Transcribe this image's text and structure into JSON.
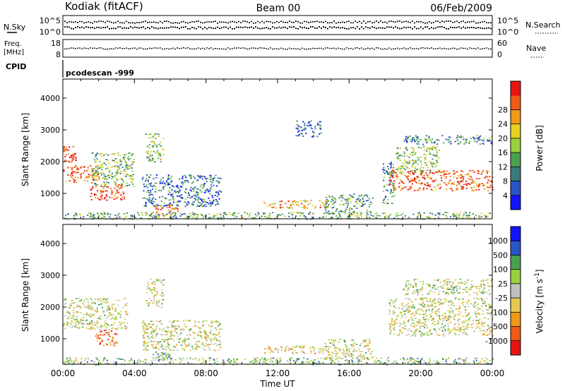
{
  "header": {
    "station": "Kodiak (fitACF)",
    "beam": "Beam 00",
    "date": "06/Feb/2009"
  },
  "status": {
    "nsky_label": "N.Sky",
    "nsky_ticks": [
      "10^5",
      "10^0"
    ],
    "nsearch_label": "N.Search",
    "nsearch_ticks": [
      "10^5",
      "10^0"
    ],
    "freq_label_1": "Freq.",
    "freq_label_2": "[MHz]",
    "freq_ticks": [
      "18",
      "8"
    ],
    "nave_label": "Nave",
    "nave_ticks": [
      "60",
      "0"
    ],
    "cpid_label": "CPID",
    "cpid_value": "pcodescan -999"
  },
  "chart_data": [
    {
      "type": "heatmap",
      "name": "power",
      "ylabel": "Slant Range [km]",
      "yticks": [
        "1000",
        "2000",
        "3000",
        "4000"
      ],
      "ylim": [
        200,
        4600
      ],
      "xlim_hours": [
        0,
        24
      ],
      "colorbar": {
        "label": "Power [dB]",
        "ticks": [
          "4",
          "8",
          "12",
          "16",
          "20",
          "24",
          "28"
        ],
        "colors": [
          "#1414ff",
          "#2a55c8",
          "#3a7a7a",
          "#4aa050",
          "#9ad03c",
          "#e8d020",
          "#f09a1a",
          "#f05a14",
          "#e81414"
        ]
      },
      "regions": [
        {
          "t0": 0.0,
          "t1": 2.0,
          "r0": 1350,
          "r1": 1900,
          "level": 0.8
        },
        {
          "t0": 0.0,
          "t1": 0.7,
          "r0": 1950,
          "r1": 2500,
          "level": 0.9
        },
        {
          "t0": 1.5,
          "t1": 3.4,
          "r0": 800,
          "r1": 1300,
          "level": 0.9
        },
        {
          "t0": 1.6,
          "t1": 4.0,
          "r0": 1200,
          "r1": 2300,
          "level": 0.45
        },
        {
          "t0": 4.6,
          "t1": 5.6,
          "r0": 2000,
          "r1": 2900,
          "level": 0.45
        },
        {
          "t0": 5.0,
          "t1": 6.4,
          "r0": 350,
          "r1": 650,
          "level": 0.8
        },
        {
          "t0": 4.4,
          "t1": 8.8,
          "r0": 600,
          "r1": 1600,
          "level": 0.25
        },
        {
          "t0": 11.2,
          "t1": 14.8,
          "r0": 550,
          "r1": 800,
          "level": 0.7
        },
        {
          "t0": 14.6,
          "t1": 17.3,
          "r0": 350,
          "r1": 1000,
          "level": 0.35
        },
        {
          "t0": 17.8,
          "t1": 18.5,
          "r0": 700,
          "r1": 2000,
          "level": 0.3
        },
        {
          "t0": 18.2,
          "t1": 24.0,
          "r0": 1100,
          "r1": 1750,
          "level": 0.85
        },
        {
          "t0": 18.6,
          "t1": 21.0,
          "r0": 1650,
          "r1": 2500,
          "level": 0.45
        },
        {
          "t0": 19.0,
          "t1": 24.0,
          "r0": 2550,
          "r1": 2850,
          "level": 0.3
        },
        {
          "t0": 13.0,
          "t1": 14.4,
          "r0": 2800,
          "r1": 3300,
          "level": 0.2
        },
        {
          "t0": 0.0,
          "t1": 24.0,
          "r0": 200,
          "r1": 420,
          "level": 0.4
        }
      ]
    },
    {
      "type": "heatmap",
      "name": "velocity",
      "ylabel": "Slant Range [km]",
      "yticks": [
        "1000",
        "2000",
        "3000",
        "4000"
      ],
      "ylim": [
        200,
        4600
      ],
      "xlim_hours": [
        0,
        24
      ],
      "xlabel": "Time UT",
      "xticks": [
        "00:00",
        "04:00",
        "08:00",
        "12:00",
        "16:00",
        "20:00",
        "00:00"
      ],
      "colorbar": {
        "label": "Velocity [m s",
        "label_sup": "-1",
        "label_end": "]",
        "ticks": [
          "-1000",
          "-500",
          "-100",
          "-25",
          "25",
          "100",
          "500",
          "1000"
        ],
        "colors": [
          "#e81414",
          "#f05a14",
          "#f09a1a",
          "#e8c850",
          "#c0c0c0",
          "#9ad03c",
          "#4aa050",
          "#2a55c8",
          "#1414ff"
        ]
      },
      "regions": [
        {
          "t0": 0.0,
          "t1": 3.6,
          "r0": 1300,
          "r1": 2300,
          "level": 0.5
        },
        {
          "t0": 1.8,
          "t1": 3.0,
          "r0": 800,
          "r1": 1300,
          "level": 0.15
        },
        {
          "t0": 4.6,
          "t1": 5.6,
          "r0": 2000,
          "r1": 2900,
          "level": 0.5
        },
        {
          "t0": 5.0,
          "t1": 6.0,
          "r0": 350,
          "r1": 600,
          "level": 0.6
        },
        {
          "t0": 4.4,
          "t1": 8.8,
          "r0": 650,
          "r1": 1600,
          "level": 0.5
        },
        {
          "t0": 11.2,
          "t1": 14.8,
          "r0": 550,
          "r1": 800,
          "level": 0.4
        },
        {
          "t0": 14.6,
          "t1": 17.3,
          "r0": 350,
          "r1": 1000,
          "level": 0.5
        },
        {
          "t0": 18.2,
          "t1": 24.0,
          "r0": 1100,
          "r1": 2300,
          "level": 0.5
        },
        {
          "t0": 19.0,
          "t1": 24.0,
          "r0": 2400,
          "r1": 2900,
          "level": 0.55
        },
        {
          "t0": 0.0,
          "t1": 24.0,
          "r0": 200,
          "r1": 420,
          "level": 0.6
        }
      ]
    }
  ]
}
